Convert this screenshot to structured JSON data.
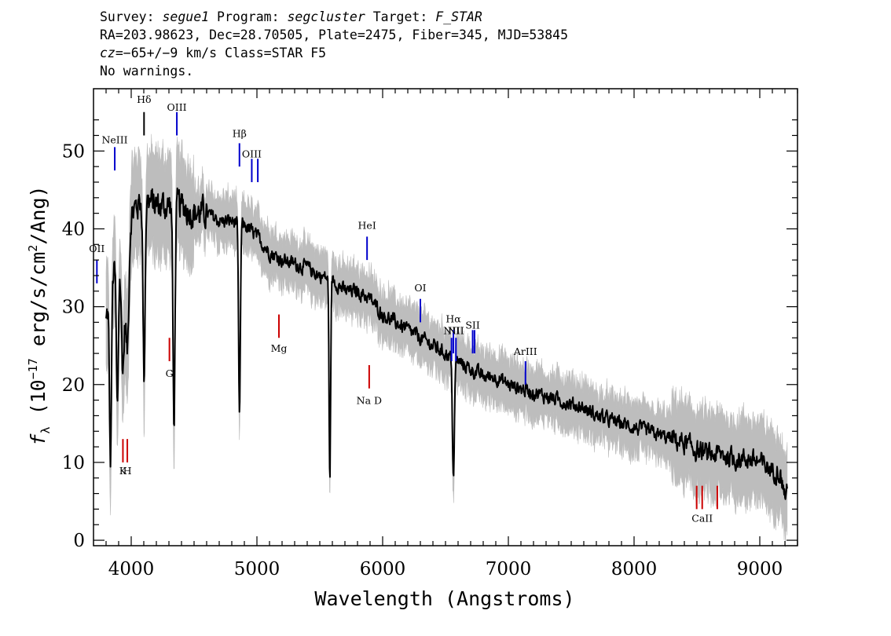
{
  "header": {
    "survey_label": "Survey:",
    "survey": "segue1",
    "program_label": "Program:",
    "program": "segcluster",
    "target_label": "Target:",
    "target": "F_STAR",
    "line2": "RA=203.98623, Dec=28.70505, Plate=2475, Fiber=345, MJD=53845",
    "cz_label": "cz",
    "cz_value": "=−65+/−9",
    "cz_rest": " km/s Class=STAR F5",
    "line4": "No warnings."
  },
  "chart_data": {
    "type": "line",
    "xlabel": "Wavelength (Angstroms)",
    "ylabel_prefix": "f",
    "ylabel_sub": "λ",
    "ylabel_main": " (10",
    "ylabel_exp": "−17",
    "ylabel_mid": " erg/s/cm",
    "ylabel_exp2": "2",
    "ylabel_end": "/Ang)",
    "xlim": [
      3700,
      9300
    ],
    "ylim": [
      -0.7,
      58
    ],
    "x_ticks": [
      4000,
      5000,
      6000,
      7000,
      8000,
      9000
    ],
    "y_ticks": [
      0,
      10,
      20,
      30,
      40,
      50
    ],
    "colors": {
      "spectrum": "#000000",
      "error_band": "#bdbdbd",
      "emission": "#0000cc",
      "absorption": "#cc0000"
    },
    "spectrum_knots": [
      [
        3800,
        28
      ],
      [
        3850,
        34
      ],
      [
        3900,
        36
      ],
      [
        3950,
        38
      ],
      [
        4000,
        42
      ],
      [
        4050,
        43
      ],
      [
        4100,
        44
      ],
      [
        4200,
        43
      ],
      [
        4300,
        43
      ],
      [
        4400,
        43
      ],
      [
        4500,
        42
      ],
      [
        4600,
        42
      ],
      [
        4700,
        41
      ],
      [
        4800,
        41
      ],
      [
        4900,
        40.5
      ],
      [
        5000,
        39
      ],
      [
        5100,
        37
      ],
      [
        5200,
        36
      ],
      [
        5300,
        35.5
      ],
      [
        5400,
        35
      ],
      [
        5500,
        34
      ],
      [
        5600,
        33.5
      ],
      [
        5700,
        32
      ],
      [
        5800,
        32
      ],
      [
        5900,
        31
      ],
      [
        6000,
        29
      ],
      [
        6100,
        28
      ],
      [
        6200,
        27
      ],
      [
        6300,
        26
      ],
      [
        6400,
        25
      ],
      [
        6500,
        24
      ],
      [
        6600,
        23
      ],
      [
        6700,
        22
      ],
      [
        6800,
        21
      ],
      [
        6900,
        21
      ],
      [
        7000,
        20
      ],
      [
        7100,
        19.5
      ],
      [
        7200,
        19
      ],
      [
        7300,
        18.5
      ],
      [
        7400,
        18
      ],
      [
        7500,
        17.5
      ],
      [
        7600,
        17
      ],
      [
        7700,
        16
      ],
      [
        7800,
        15.5
      ],
      [
        7900,
        15
      ],
      [
        8000,
        14.5
      ],
      [
        8100,
        14
      ],
      [
        8200,
        13.5
      ],
      [
        8300,
        13
      ],
      [
        8400,
        12.5
      ],
      [
        8500,
        11.5
      ],
      [
        8600,
        11
      ],
      [
        8700,
        11
      ],
      [
        8800,
        10.5
      ],
      [
        8900,
        10.5
      ],
      [
        9000,
        10
      ],
      [
        9100,
        9
      ],
      [
        9150,
        9
      ],
      [
        9200,
        6
      ]
    ],
    "absorption_features": [
      [
        3934,
        15,
        12
      ],
      [
        3969,
        15,
        12
      ],
      [
        4102,
        23,
        8
      ],
      [
        4340,
        28,
        8
      ],
      [
        4861,
        25,
        7
      ],
      [
        5580,
        26,
        6
      ],
      [
        6563,
        15,
        8
      ],
      [
        3835,
        22,
        8
      ],
      [
        3890,
        19,
        8
      ],
      [
        3750,
        24,
        8
      ]
    ],
    "emission_lines": [
      {
        "label": "OII",
        "wave": 3727,
        "y1": 33,
        "y2": 36,
        "label_y": 37
      },
      {
        "label": "NeIII",
        "wave": 3869,
        "y1": 47.5,
        "y2": 50.5,
        "label_y": 51
      },
      {
        "label": "Hδ",
        "wave": 4102,
        "y1": 52,
        "y2": 55,
        "label_y": 56.2,
        "color": "#000000"
      },
      {
        "label": "OIII",
        "wave": 4363,
        "y1": 52,
        "y2": 55,
        "label_y": 55.2
      },
      {
        "label": "Hβ",
        "wave": 4861,
        "y1": 48,
        "y2": 51,
        "label_y": 51.8
      },
      {
        "label": "OIII",
        "wave": 4959,
        "y1": 46,
        "y2": 49,
        "label_y": 49.2
      },
      {
        "label": "",
        "wave": 5007,
        "y1": 46,
        "y2": 49,
        "label_y": 49.2
      },
      {
        "label": "HeI",
        "wave": 5876,
        "y1": 36,
        "y2": 39,
        "label_y": 40
      },
      {
        "label": "OI",
        "wave": 6300,
        "y1": 28,
        "y2": 31,
        "label_y": 32
      },
      {
        "label": "NII",
        "wave": 6548,
        "y1": 23,
        "y2": 26,
        "label_y": 26.5
      },
      {
        "label": "Hα",
        "wave": 6563,
        "y1": 24,
        "y2": 27,
        "label_y": 28
      },
      {
        "label": "NII",
        "wave": 6583,
        "y1": 23,
        "y2": 26,
        "label_y": 26.5
      },
      {
        "label": "SII",
        "wave": 6716,
        "y1": 24,
        "y2": 27,
        "label_y": 27.2
      },
      {
        "label": "",
        "wave": 6731,
        "y1": 24,
        "y2": 27,
        "label_y": 27.2
      },
      {
        "label": "ArIII",
        "wave": 7136,
        "y1": 20,
        "y2": 23,
        "label_y": 23.8
      }
    ],
    "absorption_lines": [
      {
        "label": "K",
        "wave": 3934,
        "y1": 10,
        "y2": 13,
        "label_y": 8.5
      },
      {
        "label": "H",
        "wave": 3969,
        "y1": 10,
        "y2": 13,
        "label_y": 8.5
      },
      {
        "label": "G",
        "wave": 4304,
        "y1": 23,
        "y2": 26,
        "label_y": 21
      },
      {
        "label": "Mg",
        "wave": 5175,
        "y1": 26,
        "y2": 29,
        "label_y": 24.2
      },
      {
        "label": "Na D",
        "wave": 5893,
        "y1": 19.5,
        "y2": 22.5,
        "label_y": 17.5
      },
      {
        "label": "",
        "wave": 8498,
        "y1": 4,
        "y2": 7,
        "label_y": 2.4
      },
      {
        "label": "CaII",
        "wave": 8542,
        "y1": 4,
        "y2": 7,
        "label_y": 2.4
      },
      {
        "label": "",
        "wave": 8662,
        "y1": 4,
        "y2": 7,
        "label_y": 2.4
      }
    ]
  }
}
